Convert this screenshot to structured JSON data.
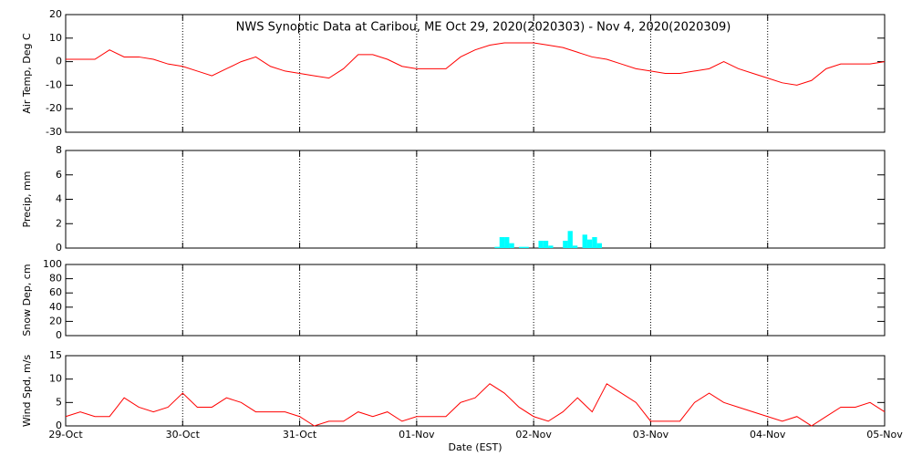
{
  "chart_data": [
    {
      "type": "line",
      "title": "NWS Synoptic Data at Caribou, ME   Oct 29, 2020(2020303) - Nov  4, 2020(2020309)",
      "ylabel": "Air Temp, Deg C",
      "xlim": [
        0,
        168
      ],
      "xticks": [
        24,
        48,
        72,
        96,
        120,
        144
      ],
      "ylim": [
        -30,
        20
      ],
      "yticks": [
        -30,
        -20,
        -10,
        0,
        10,
        20
      ],
      "x": [
        0,
        3,
        6,
        9,
        12,
        15,
        18,
        21,
        24,
        27,
        30,
        33,
        36,
        39,
        42,
        45,
        48,
        51,
        54,
        57,
        60,
        63,
        66,
        69,
        72,
        75,
        78,
        81,
        84,
        87,
        90,
        93,
        96,
        99,
        102,
        105,
        108,
        111,
        114,
        117,
        120,
        123,
        126,
        129,
        132,
        135,
        138,
        141,
        144,
        147,
        150,
        153,
        156,
        159,
        162,
        165,
        168
      ],
      "series": [
        {
          "name": "Air Temp",
          "color": "#ff0000",
          "values": [
            1,
            1,
            1,
            5,
            2,
            2,
            1,
            -1,
            -2,
            -4,
            -6,
            -3,
            0,
            2,
            -2,
            -4,
            -5,
            -6,
            -7,
            -3,
            3,
            3,
            1,
            -2,
            -3,
            -3,
            -3,
            2,
            5,
            7,
            8,
            8,
            8,
            7,
            6,
            4,
            2,
            1,
            -1,
            -3,
            -4,
            -5,
            -5,
            -4,
            -3,
            0,
            -3,
            -5,
            -7,
            -9,
            -10,
            -8,
            -3,
            -1,
            -1,
            -1,
            0
          ]
        }
      ]
    },
    {
      "type": "bar",
      "ylabel": "Precip, mm",
      "xlim": [
        0,
        168
      ],
      "xticks": [
        24,
        48,
        72,
        96,
        120,
        144
      ],
      "ylim": [
        0,
        8
      ],
      "yticks": [
        0,
        2,
        4,
        6,
        8
      ],
      "color": "#00ffff",
      "x": [
        88,
        89,
        90,
        91,
        93,
        94,
        97,
        98,
        99,
        102,
        103,
        104,
        106,
        107,
        108,
        109
      ],
      "values": [
        0.1,
        0.9,
        0.9,
        0.4,
        0.1,
        0.1,
        0.6,
        0.6,
        0.2,
        0.6,
        1.4,
        0.2,
        1.1,
        0.7,
        0.9,
        0.4
      ]
    },
    {
      "type": "line",
      "ylabel": "Snow Dep, cm",
      "xlim": [
        0,
        168
      ],
      "xticks": [
        24,
        48,
        72,
        96,
        120,
        144
      ],
      "ylim": [
        0,
        100
      ],
      "yticks": [
        0,
        20,
        40,
        60,
        80,
        100
      ]
    },
    {
      "type": "line",
      "ylabel": "Wind Spd, m/s",
      "xlabel": "Date (EST)",
      "xlim": [
        0,
        168
      ],
      "xticks": [
        {
          "value": 0,
          "label": "29-Oct"
        },
        {
          "value": 24,
          "label": "30-Oct"
        },
        {
          "value": 48,
          "label": "31-Oct"
        },
        {
          "value": 72,
          "label": "01-Nov"
        },
        {
          "value": 96,
          "label": "02-Nov"
        },
        {
          "value": 120,
          "label": "03-Nov"
        },
        {
          "value": 144,
          "label": "04-Nov"
        },
        {
          "value": 168,
          "label": "05-Nov"
        }
      ],
      "ylim": [
        0,
        15
      ],
      "yticks": [
        0,
        5,
        10,
        15
      ],
      "x": [
        0,
        3,
        6,
        9,
        12,
        15,
        18,
        21,
        24,
        27,
        30,
        33,
        36,
        39,
        42,
        45,
        48,
        51,
        54,
        57,
        60,
        63,
        66,
        69,
        72,
        75,
        78,
        81,
        84,
        87,
        90,
        93,
        96,
        99,
        102,
        105,
        108,
        111,
        114,
        117,
        120,
        123,
        126,
        129,
        132,
        135,
        138,
        141,
        144,
        147,
        150,
        153,
        156,
        159,
        162,
        165,
        168
      ],
      "series": [
        {
          "name": "Wind Spd",
          "color": "#ff0000",
          "values": [
            2,
            3,
            2,
            2,
            6,
            4,
            3,
            4,
            7,
            4,
            4,
            6,
            5,
            3,
            3,
            3,
            2,
            0,
            1,
            1,
            3,
            2,
            3,
            1,
            2,
            2,
            2,
            5,
            6,
            9,
            7,
            4,
            2,
            1,
            3,
            6,
            3,
            9,
            7,
            5,
            1,
            1,
            1,
            5,
            7,
            5,
            4,
            3,
            2,
            1,
            2,
            0,
            2,
            4,
            4,
            5,
            3
          ]
        }
      ]
    }
  ]
}
